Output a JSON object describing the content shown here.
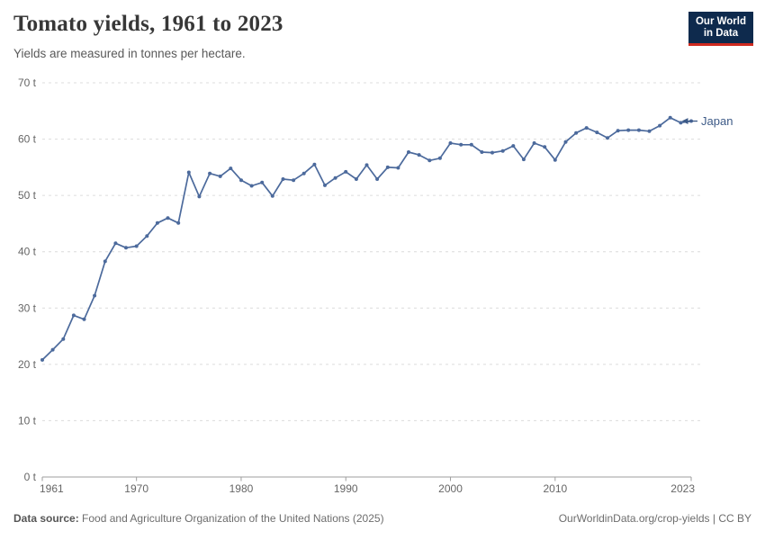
{
  "header": {
    "title": "Tomato yields, 1961 to 2023",
    "subtitle": "Yields are measured in tonnes per hectare.",
    "logo": {
      "line1": "Our World",
      "line2": "in Data"
    }
  },
  "colors": {
    "line": "#4C6A9C",
    "entity_label": "#3D5A87",
    "logo_bg": "#0E2A4D",
    "logo_accent": "#CF2A1F",
    "grid": "#DCDCDC",
    "axis": "#9E9E9E",
    "tick_text": "#666666"
  },
  "chart_data": {
    "type": "line",
    "title": "Tomato yields, 1961 to 2023",
    "subtitle": "Yields are measured in tonnes per hectare.",
    "xlabel": "",
    "ylabel": "tonnes per hectare",
    "ylim": [
      0,
      70
    ],
    "ytick_step": 10,
    "ytick_suffix": " t",
    "xticks": [
      1961,
      1970,
      1980,
      1990,
      2000,
      2010,
      2023
    ],
    "grid": "horizontal-dashed",
    "legend_position": "end-of-line",
    "x": [
      1961,
      1962,
      1963,
      1964,
      1965,
      1966,
      1967,
      1968,
      1969,
      1970,
      1971,
      1972,
      1973,
      1974,
      1975,
      1976,
      1977,
      1978,
      1979,
      1980,
      1981,
      1982,
      1983,
      1984,
      1985,
      1986,
      1987,
      1988,
      1989,
      1990,
      1991,
      1992,
      1993,
      1994,
      1995,
      1996,
      1997,
      1998,
      1999,
      2000,
      2001,
      2002,
      2003,
      2004,
      2005,
      2006,
      2007,
      2008,
      2009,
      2010,
      2011,
      2012,
      2013,
      2014,
      2015,
      2016,
      2017,
      2018,
      2019,
      2020,
      2021,
      2022,
      2023
    ],
    "series": [
      {
        "name": "Japan",
        "values": [
          20.8,
          22.6,
          24.5,
          28.7,
          28.0,
          32.2,
          38.3,
          41.5,
          40.7,
          41.0,
          42.8,
          45.1,
          46.0,
          45.1,
          54.1,
          49.8,
          53.9,
          53.4,
          54.8,
          52.7,
          51.7,
          52.3,
          49.9,
          52.9,
          52.7,
          53.9,
          55.5,
          51.8,
          53.1,
          54.2,
          52.9,
          55.4,
          52.9,
          55.0,
          54.9,
          57.7,
          57.2,
          56.2,
          56.6,
          59.3,
          59.0,
          59.0,
          57.7,
          57.6,
          57.9,
          58.8,
          56.4,
          59.3,
          58.6,
          56.3,
          59.5,
          61.1,
          62.0,
          61.2,
          60.2,
          61.5,
          61.6,
          61.6,
          61.4,
          62.4,
          63.8,
          62.9,
          63.2
        ]
      }
    ]
  },
  "footer": {
    "source_label": "Data source:",
    "source_text": " Food and Agriculture Organization of the United Nations (2025)",
    "attribution": "OurWorldinData.org/crop-yields | CC BY"
  }
}
